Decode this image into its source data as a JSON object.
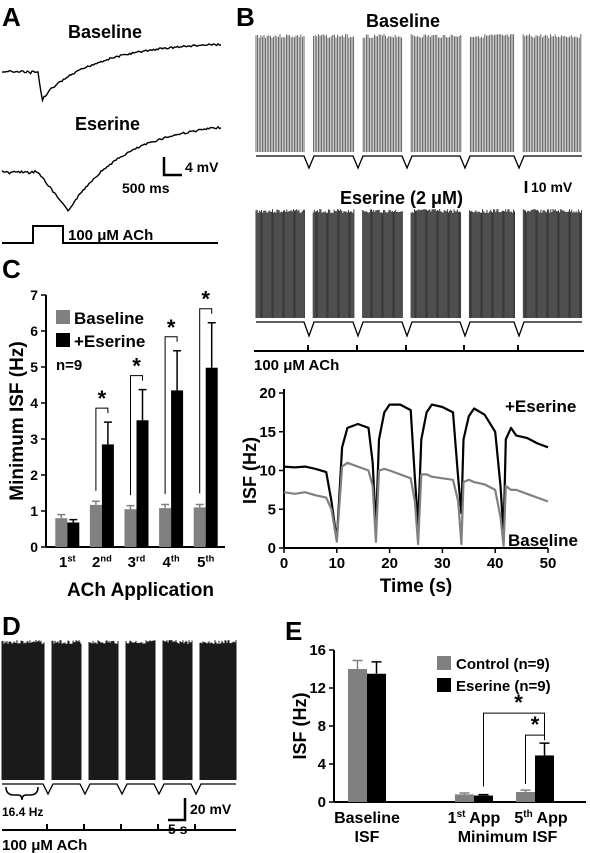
{
  "panels": {
    "A": {
      "letter": "A",
      "trace1_label": "Baseline",
      "trace2_label": "Eserine",
      "scale_v": "4 mV",
      "scale_t": "500 ms",
      "stim_label": "100 μM ACh"
    },
    "B": {
      "letter": "B",
      "top_label": "Baseline",
      "bottom_label": "Eserine (2 μM)",
      "scale_v": "10 mV",
      "stim_label": "100 μM ACh"
    },
    "D": {
      "letter": "D",
      "brace_label": "16.4 Hz",
      "scale_v": "20 mV",
      "scale_t": "5 s",
      "stim_label": "100 μM ACh"
    }
  },
  "chart_data": [
    {
      "panel": "C",
      "type": "bar",
      "ylabel": "Minimum ISF (Hz)",
      "xlabel": "ACh Application",
      "categories": [
        {
          "base": "1",
          "sup": "st"
        },
        {
          "base": "2",
          "sup": "nd"
        },
        {
          "base": "3",
          "sup": "rd"
        },
        {
          "base": "4",
          "sup": "th"
        },
        {
          "base": "5",
          "sup": "th"
        }
      ],
      "ylim": [
        0,
        7
      ],
      "yticks": [
        0,
        1,
        2,
        3,
        4,
        5,
        6,
        7
      ],
      "series": [
        {
          "name": "Baseline",
          "color": "#808080",
          "values": [
            0.8,
            1.17,
            1.05,
            1.08,
            1.1
          ],
          "errors": [
            0.1,
            0.1,
            0.1,
            0.1,
            0.08
          ]
        },
        {
          "name": "+Eserine",
          "color": "#000000",
          "values": [
            0.68,
            2.85,
            3.52,
            4.35,
            4.98
          ],
          "errors": [
            0.08,
            0.62,
            0.85,
            1.1,
            1.25
          ]
        }
      ],
      "annotations": [
        "n=9"
      ],
      "significance": [
        {
          "category": 1,
          "label": "*"
        },
        {
          "category": 2,
          "label": "*"
        },
        {
          "category": 3,
          "label": "*"
        },
        {
          "category": 4,
          "label": "*"
        }
      ]
    },
    {
      "panel": "B",
      "type": "line",
      "ylabel": "ISF (Hz)",
      "xlabel": "Time (s)",
      "xlim": [
        0,
        50
      ],
      "ylim": [
        0,
        20
      ],
      "xticks": [
        0,
        10,
        20,
        30,
        40,
        50
      ],
      "yticks": [
        0,
        5,
        10,
        15,
        20
      ],
      "series": [
        {
          "name": "+Eserine",
          "color": "#000000",
          "x": [
            0,
            2,
            4,
            6,
            8,
            9,
            10,
            11,
            12,
            14,
            16,
            16.8,
            17.4,
            18,
            19,
            20,
            22,
            24,
            24.8,
            25.4,
            26,
            27,
            28,
            30,
            32,
            33,
            33.6,
            34,
            35,
            36,
            38,
            40,
            41,
            41.6,
            42,
            43,
            44,
            46,
            48,
            50
          ],
          "y": [
            10.5,
            10.4,
            10.5,
            10.2,
            9.8,
            6,
            1,
            13,
            15.5,
            16,
            15.5,
            11,
            2.5,
            14,
            17.5,
            18.5,
            18.5,
            17.8,
            9,
            3,
            14,
            17.5,
            18.5,
            18.2,
            17.5,
            9,
            4.5,
            14,
            17,
            18,
            17.2,
            15,
            8,
            1.8,
            14,
            15.5,
            14.5,
            14.2,
            13.5,
            13
          ]
        },
        {
          "name": "Baseline",
          "color": "#808080",
          "x": [
            0,
            2,
            4,
            6,
            8,
            9,
            10,
            11,
            12,
            14,
            16,
            16.8,
            17.4,
            18,
            19,
            20,
            22,
            24,
            24.8,
            25.4,
            26,
            27,
            28,
            30,
            32,
            33,
            33.6,
            34,
            35,
            36,
            38,
            40,
            41,
            41.6,
            42,
            43,
            44,
            46,
            48,
            50
          ],
          "y": [
            7.2,
            7,
            7.2,
            6.8,
            6.5,
            5,
            0.8,
            10.5,
            11,
            10.5,
            10,
            8,
            0.8,
            10,
            10.2,
            10,
            9.5,
            9,
            6,
            0.5,
            9.5,
            9.5,
            9.2,
            9,
            8.8,
            6,
            0.5,
            8.5,
            8.8,
            8.5,
            8.2,
            7.5,
            4,
            0.3,
            8,
            7.5,
            7.5,
            7,
            6.5,
            6
          ]
        }
      ]
    },
    {
      "panel": "E",
      "type": "bar",
      "ylabel": "ISF (Hz)",
      "ylim": [
        0,
        16
      ],
      "yticks": [
        0,
        4,
        8,
        12,
        16
      ],
      "groups": [
        {
          "lines": [
            "Baseline",
            "ISF"
          ]
        },
        {
          "lines": [
            "Minimum ISF"
          ],
          "sub": [
            {
              "base": "1",
              "sup": "st",
              "rest": " App"
            },
            {
              "base": "5",
              "sup": "th",
              "rest": " App"
            }
          ]
        }
      ],
      "categories": [
        "Baseline ISF",
        "1st App",
        "5th App"
      ],
      "series": [
        {
          "name": "Control (n=9)",
          "color": "#808080",
          "values": [
            14.0,
            0.8,
            1.05
          ],
          "errors": [
            0.9,
            0.15,
            0.2
          ]
        },
        {
          "name": "Eserine (n=9)",
          "color": "#000000",
          "values": [
            13.5,
            0.68,
            4.9
          ],
          "errors": [
            1.25,
            0.1,
            1.3
          ]
        }
      ],
      "significance": [
        {
          "label": "*"
        },
        {
          "label": "*"
        }
      ]
    }
  ]
}
